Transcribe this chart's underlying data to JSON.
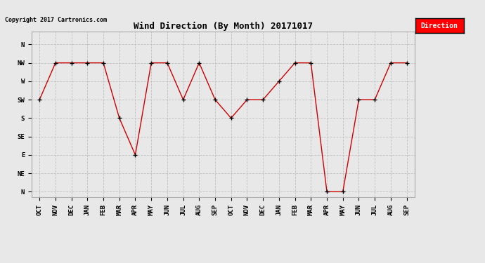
{
  "title": "Wind Direction (By Month) 20171017",
  "copyright": "Copyright 2017 Cartronics.com",
  "legend_label": "Direction",
  "legend_bg": "#ff0000",
  "legend_text_color": "#ffffff",
  "x_labels": [
    "OCT",
    "NOV",
    "DEC",
    "JAN",
    "FEB",
    "MAR",
    "APR",
    "MAY",
    "JUN",
    "JUL",
    "AUG",
    "SEP",
    "OCT",
    "NOV",
    "DEC",
    "JAN",
    "FEB",
    "MAR",
    "APR",
    "MAY",
    "JUN",
    "JUL",
    "AUG",
    "SEP"
  ],
  "y_labels": [
    "N",
    "NE",
    "E",
    "SE",
    "S",
    "SW",
    "W",
    "NW",
    "N"
  ],
  "y_values": [
    0,
    1,
    2,
    3,
    4,
    5,
    6,
    7,
    8
  ],
  "data_values": [
    5,
    7,
    7,
    7,
    7,
    4,
    2,
    7,
    7,
    5,
    7,
    5,
    4,
    5,
    5,
    6,
    7,
    7,
    0,
    0,
    5,
    5,
    7,
    7
  ],
  "line_color": "#cc0000",
  "marker_color": "#000000",
  "bg_color": "#e8e8e8",
  "grid_color": "#c0c0c0",
  "title_fontsize": 9,
  "copyright_fontsize": 6,
  "tick_fontsize": 6.5,
  "legend_fontsize": 7
}
